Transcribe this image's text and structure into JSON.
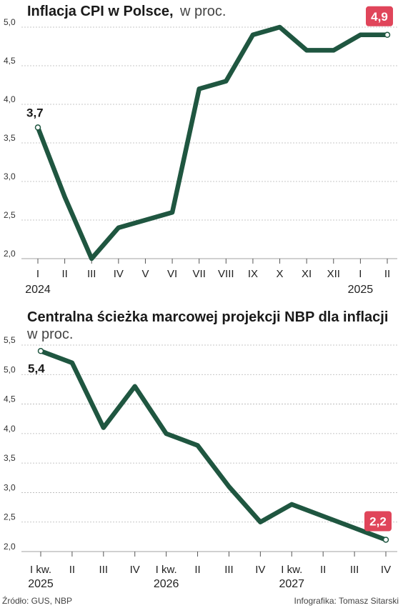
{
  "colors": {
    "line": "#1f5640",
    "highlight": "#e0455a",
    "grid": "#b5b5b5"
  },
  "footer": {
    "source": "Źródło: GUS, NBP",
    "credit": "Infografika: Tomasz Sitarski"
  },
  "chart_data": [
    {
      "type": "line",
      "title": "Inflacja CPI w Polsce,",
      "subtitle": "w proc.",
      "categories": [
        "I",
        "II",
        "III",
        "IV",
        "V",
        "VI",
        "VII",
        "VIII",
        "IX",
        "X",
        "XI",
        "XII",
        "I",
        "II"
      ],
      "year_labels": [
        {
          "index": 0,
          "text": "2024"
        },
        {
          "index": 12,
          "text": "2025"
        }
      ],
      "values": [
        3.7,
        2.8,
        2.0,
        2.4,
        2.5,
        2.6,
        4.2,
        4.3,
        4.9,
        5.0,
        4.7,
        4.7,
        4.9,
        4.9
      ],
      "ylim": [
        2.0,
        5.0
      ],
      "yticks": [
        "2,0",
        "2,5",
        "3,0",
        "3,5",
        "4,0",
        "4,5",
        "5,0"
      ],
      "grid": true,
      "callouts": [
        {
          "index": 0,
          "text": "3,7",
          "style": "plain"
        },
        {
          "index": 13,
          "text": "4,9",
          "style": "highlight"
        }
      ]
    },
    {
      "type": "line",
      "title": "Centralna ścieżka marcowej projekcji NBP dla inflacji",
      "subtitle": "w proc.",
      "categories": [
        "I kw.",
        "II",
        "III",
        "IV",
        "I kw.",
        "II",
        "III",
        "IV",
        "I kw.",
        "II",
        "III",
        "IV"
      ],
      "year_labels": [
        {
          "index": 0,
          "text": "2025"
        },
        {
          "index": 4,
          "text": "2026"
        },
        {
          "index": 8,
          "text": "2027"
        }
      ],
      "values": [
        5.4,
        5.2,
        4.1,
        4.8,
        4.0,
        3.8,
        3.1,
        2.5,
        2.8,
        2.6,
        2.4,
        2.2
      ],
      "ylim": [
        2.0,
        5.5
      ],
      "yticks": [
        "2,0",
        "2,5",
        "3,0",
        "3,5",
        "4,0",
        "4,5",
        "5,0",
        "5,5"
      ],
      "grid": true,
      "callouts": [
        {
          "index": 0,
          "text": "5,4",
          "style": "plain"
        },
        {
          "index": 11,
          "text": "2,2",
          "style": "highlight"
        }
      ]
    }
  ]
}
